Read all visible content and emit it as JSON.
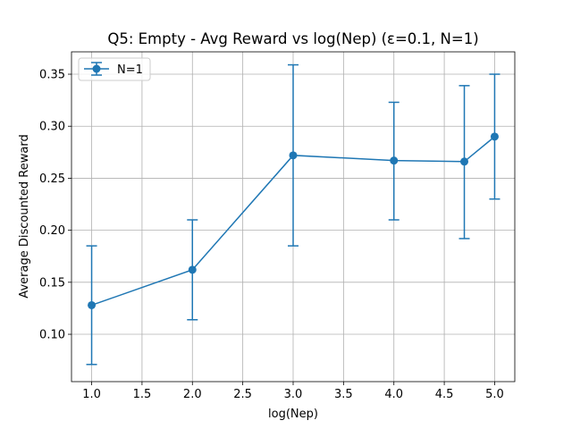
{
  "chart_data": {
    "type": "line",
    "title": "Q5: Empty - Avg Reward vs log(Nep) (ε=0.1, N=1)",
    "xlabel": "log(Nep)",
    "ylabel": "Average Discounted Reward",
    "xlim": [
      0.8,
      5.2
    ],
    "ylim": [
      0.0545,
      0.3715
    ],
    "xticks": [
      "1.0",
      "1.5",
      "2.0",
      "2.5",
      "3.0",
      "3.5",
      "4.0",
      "4.5",
      "5.0"
    ],
    "yticks": [
      "0.10",
      "0.15",
      "0.20",
      "0.25",
      "0.30",
      "0.35"
    ],
    "grid": true,
    "legend_position": "upper-left",
    "color": "#1f77b4",
    "series": [
      {
        "name": "N=1",
        "x": [
          1.0,
          2.0,
          3.0,
          4.0,
          4.699,
          5.0
        ],
        "y": [
          0.128,
          0.162,
          0.272,
          0.267,
          0.266,
          0.29
        ],
        "err_low": [
          0.071,
          0.114,
          0.185,
          0.21,
          0.192,
          0.23
        ],
        "err_high": [
          0.185,
          0.21,
          0.359,
          0.323,
          0.339,
          0.35
        ]
      }
    ]
  }
}
